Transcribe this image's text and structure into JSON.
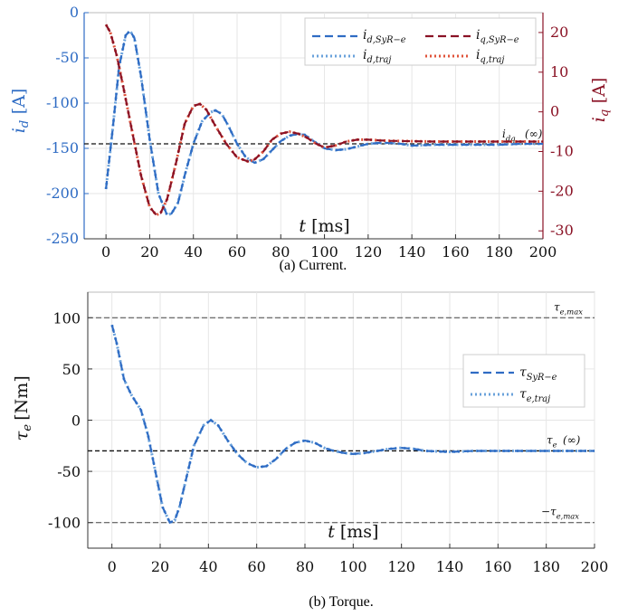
{
  "colors": {
    "blue": "#2f6cc4",
    "lightblue": "#6aa2db",
    "darkred": "#8a1225",
    "orange": "#e0533a",
    "grid": "#e6e6e6",
    "ref": "#111111"
  },
  "captions": {
    "a": "(a) Current.",
    "b": "(b) Torque."
  },
  "chart_data": [
    {
      "type": "line",
      "caption": "(a) Current.",
      "xlabel": "t [ms]",
      "ylabel_left": "i_d [A]",
      "ylabel_right": "i_q [A]",
      "xlim": [
        -10,
        200
      ],
      "ylim_left": [
        -250,
        0
      ],
      "ylim_right": [
        -32,
        25
      ],
      "xticks": [
        0,
        20,
        40,
        60,
        80,
        100,
        120,
        140,
        160,
        180,
        200
      ],
      "yticks_left": [
        0,
        -50,
        -100,
        -150,
        -200,
        -250
      ],
      "yticks_right": [
        20,
        10,
        0,
        -10,
        -20,
        -30
      ],
      "grid": true,
      "legend_position": "top-right",
      "legend": [
        {
          "name": "i_{d,SyR-e}",
          "style": "dashed",
          "color": "#2f6cc4",
          "axis": "left"
        },
        {
          "name": "i_{d,traj}",
          "style": "dotted",
          "color": "#6aa2db",
          "axis": "left"
        },
        {
          "name": "i_{q,SyR-e}",
          "style": "dashed",
          "color": "#8a1225",
          "axis": "right"
        },
        {
          "name": "i_{q,traj}",
          "style": "dotted",
          "color": "#e0533a",
          "axis": "right"
        }
      ],
      "reference_lines": [
        {
          "axis": "left",
          "y": -145,
          "label": "i_{dq}(∞)"
        }
      ],
      "series": [
        {
          "name": "i_d",
          "axis": "left",
          "x": [
            0,
            3,
            6,
            9,
            11,
            13,
            16,
            20,
            24,
            28,
            30,
            33,
            36,
            40,
            44,
            48,
            50,
            53,
            56,
            60,
            64,
            68,
            72,
            76,
            80,
            84,
            88,
            91,
            95,
            100,
            105,
            110,
            115,
            120,
            125,
            130,
            135,
            140,
            150,
            160,
            170,
            180,
            190,
            200
          ],
          "y": [
            -195,
            -130,
            -60,
            -25,
            -20,
            -28,
            -70,
            -140,
            -200,
            -224,
            -222,
            -210,
            -180,
            -145,
            -120,
            -110,
            -108,
            -112,
            -125,
            -145,
            -160,
            -166,
            -162,
            -152,
            -142,
            -136,
            -134,
            -135,
            -142,
            -150,
            -152,
            -151,
            -148,
            -145,
            -144,
            -144,
            -145,
            -147,
            -146,
            -146,
            -146,
            -146,
            -145,
            -145
          ]
        },
        {
          "name": "i_q",
          "axis": "right",
          "x": [
            0,
            2,
            5,
            8,
            12,
            16,
            20,
            23,
            25,
            28,
            32,
            36,
            40,
            43,
            46,
            50,
            55,
            60,
            65,
            68,
            72,
            76,
            80,
            84,
            88,
            92,
            96,
            100,
            105,
            110,
            115,
            120,
            125,
            130,
            140,
            150,
            160,
            170,
            180,
            190,
            200
          ],
          "y": [
            22,
            20,
            14,
            6,
            -5,
            -16,
            -24,
            -26,
            -25.5,
            -22,
            -13,
            -3,
            1.5,
            2,
            0.5,
            -3.5,
            -8,
            -11.5,
            -12.5,
            -12,
            -10,
            -7,
            -5.5,
            -5,
            -5.5,
            -6.5,
            -8,
            -9,
            -8.5,
            -7.5,
            -7,
            -7,
            -7.2,
            -7.3,
            -7.4,
            -7.5,
            -7.5,
            -7.5,
            -7.5,
            -7.5,
            -7.5
          ]
        }
      ]
    },
    {
      "type": "line",
      "caption": "(b) Torque.",
      "xlabel": "t [ms]",
      "ylabel": "τ_e [Nm]",
      "xlim": [
        -10,
        200
      ],
      "ylim": [
        -125,
        125
      ],
      "xticks": [
        0,
        20,
        40,
        60,
        80,
        100,
        120,
        140,
        160,
        180,
        200
      ],
      "yticks": [
        100,
        50,
        0,
        -50,
        -100
      ],
      "grid": true,
      "legend_position": "right",
      "legend": [
        {
          "name": "τ_{SyR-e}",
          "style": "dashed",
          "color": "#2f6cc4"
        },
        {
          "name": "τ_{e,traj}",
          "style": "dotted",
          "color": "#6aa2db"
        }
      ],
      "reference_lines": [
        {
          "y": 100,
          "label": "τ_{e,max}"
        },
        {
          "y": -30,
          "label": "τ_e(∞)"
        },
        {
          "y": -100,
          "label": "−τ_{e,max}"
        }
      ],
      "series": [
        {
          "name": "τ_e",
          "x": [
            0,
            2,
            5,
            8,
            12,
            15,
            18,
            21,
            24,
            26,
            28,
            31,
            34,
            38,
            41,
            44,
            48,
            52,
            56,
            60,
            64,
            68,
            72,
            76,
            80,
            84,
            88,
            92,
            96,
            100,
            105,
            110,
            115,
            120,
            125,
            130,
            140,
            150,
            160,
            170,
            180,
            190,
            200
          ],
          "y": [
            93,
            75,
            40,
            25,
            10,
            -15,
            -50,
            -85,
            -100,
            -98,
            -85,
            -55,
            -25,
            -5,
            0,
            -5,
            -20,
            -33,
            -42,
            -46,
            -45,
            -38,
            -28,
            -22,
            -20,
            -22,
            -27,
            -30,
            -32,
            -33,
            -32,
            -30,
            -28,
            -27,
            -28,
            -30,
            -31,
            -30,
            -30,
            -30,
            -30,
            -30,
            -30
          ]
        }
      ]
    }
  ]
}
